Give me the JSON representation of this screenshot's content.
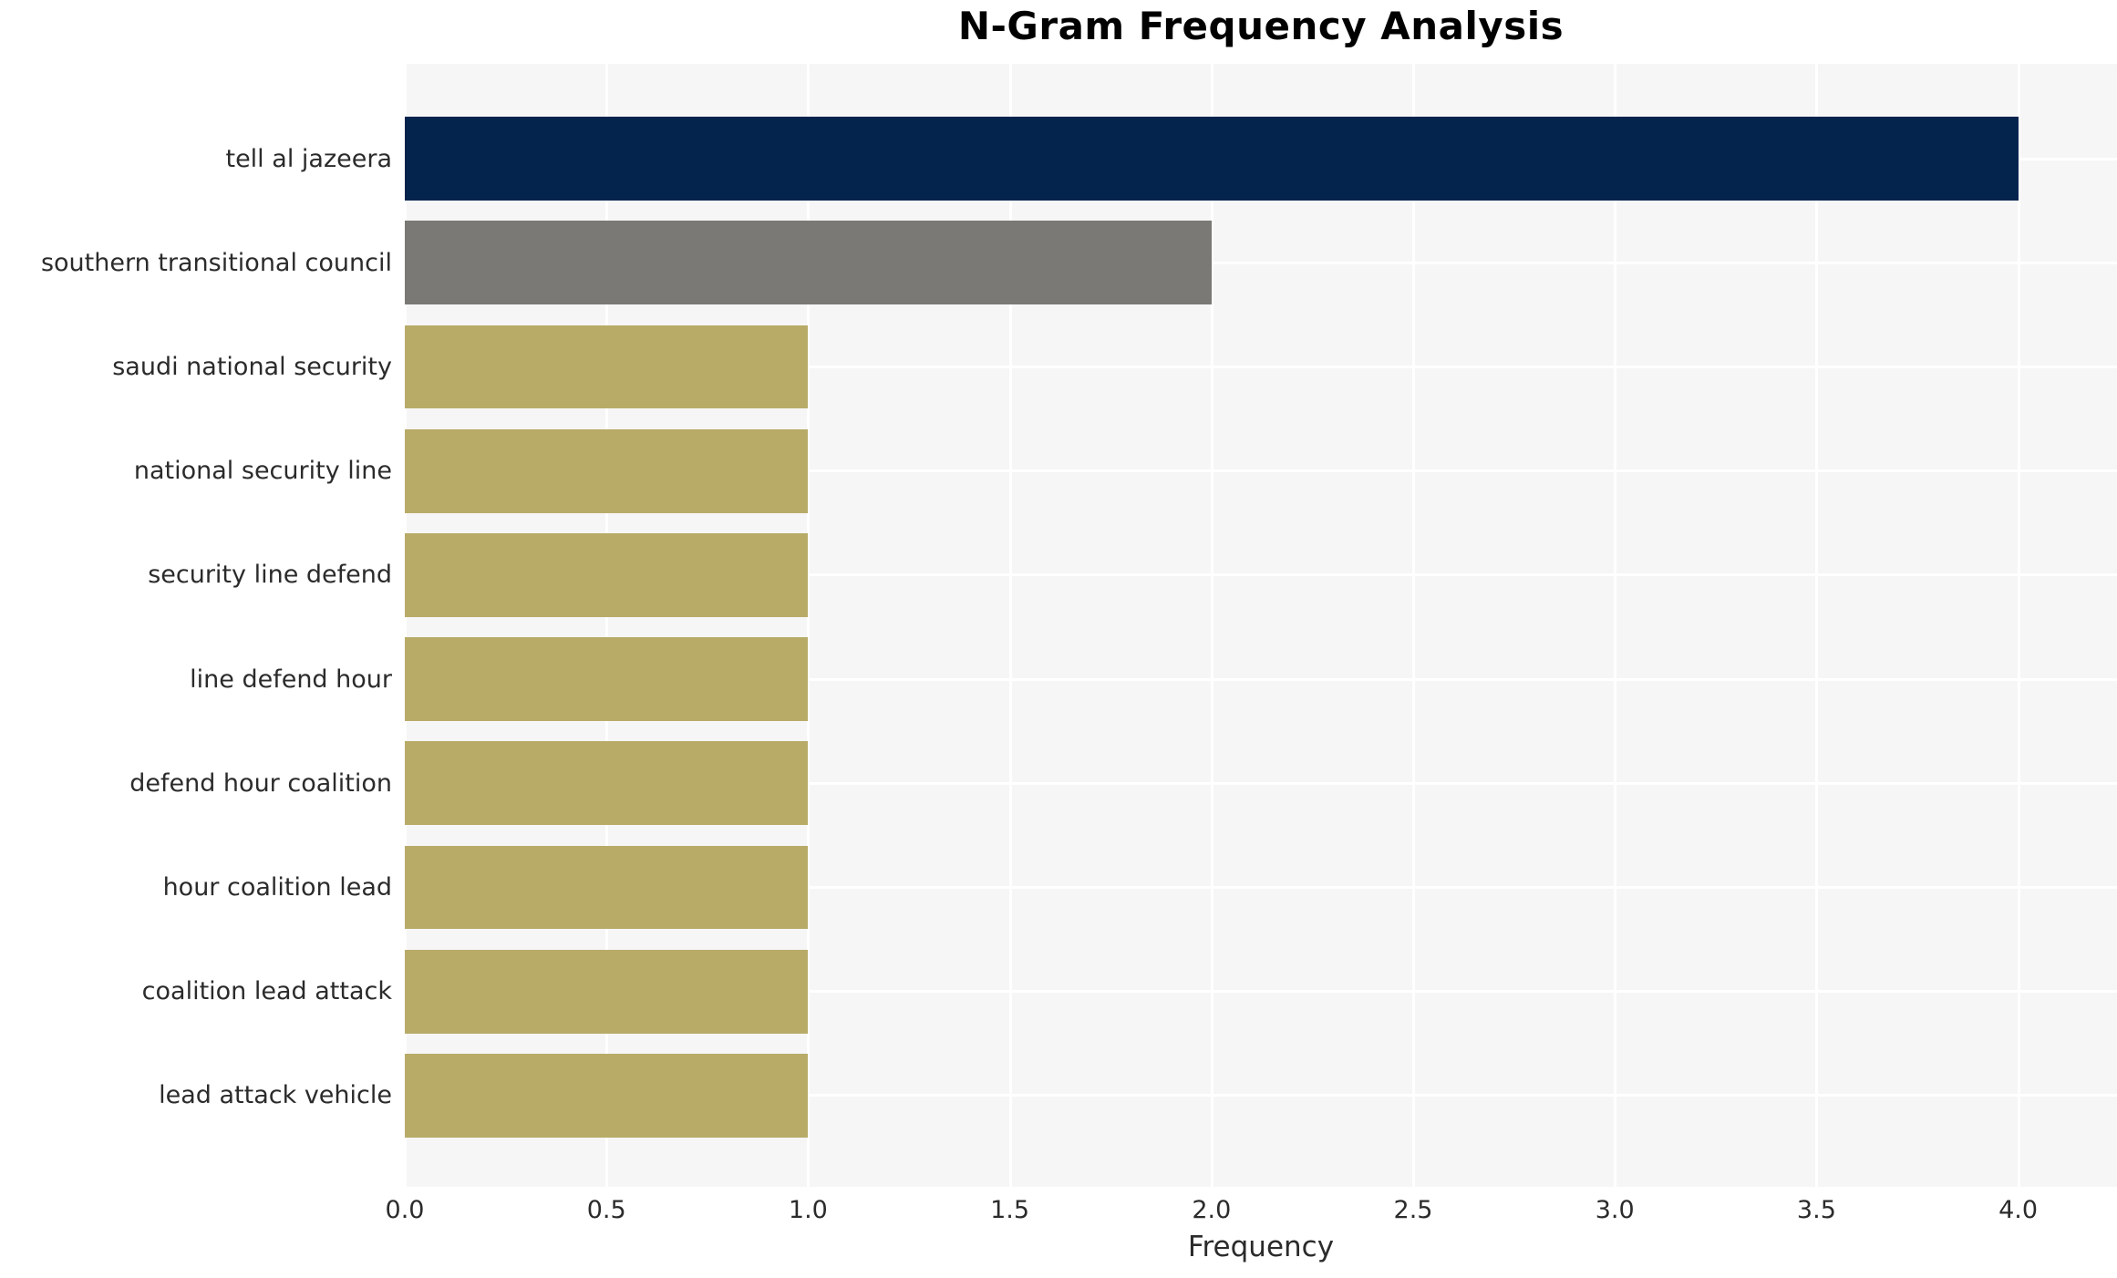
{
  "chart_data": {
    "type": "bar",
    "orientation": "horizontal",
    "title": "N-Gram Frequency Analysis",
    "xlabel": "Frequency",
    "ylabel": "",
    "categories": [
      "tell al jazeera",
      "southern transitional council",
      "saudi national security",
      "national security line",
      "security line defend",
      "line defend hour",
      "defend hour coalition",
      "hour coalition lead",
      "coalition lead attack",
      "lead attack vehicle"
    ],
    "values": [
      4,
      2,
      1,
      1,
      1,
      1,
      1,
      1,
      1,
      1
    ],
    "bar_colors": [
      "#04244e",
      "#7a7975",
      "#b8ab68",
      "#b8ab68",
      "#b8ab68",
      "#b8ab68",
      "#b8ab68",
      "#b8ab68",
      "#b8ab68",
      "#b8ab68"
    ],
    "xlim": [
      0,
      4.245
    ],
    "xticks": [
      0.0,
      0.5,
      1.0,
      1.5,
      2.0,
      2.5,
      3.0,
      3.5,
      4.0
    ],
    "xtick_labels": [
      "0.0",
      "0.5",
      "1.0",
      "1.5",
      "2.0",
      "2.5",
      "3.0",
      "3.5",
      "4.0"
    ],
    "grid": true,
    "grid_color": "#ffffff",
    "plot_background": "#f6f6f6",
    "legend": false
  }
}
